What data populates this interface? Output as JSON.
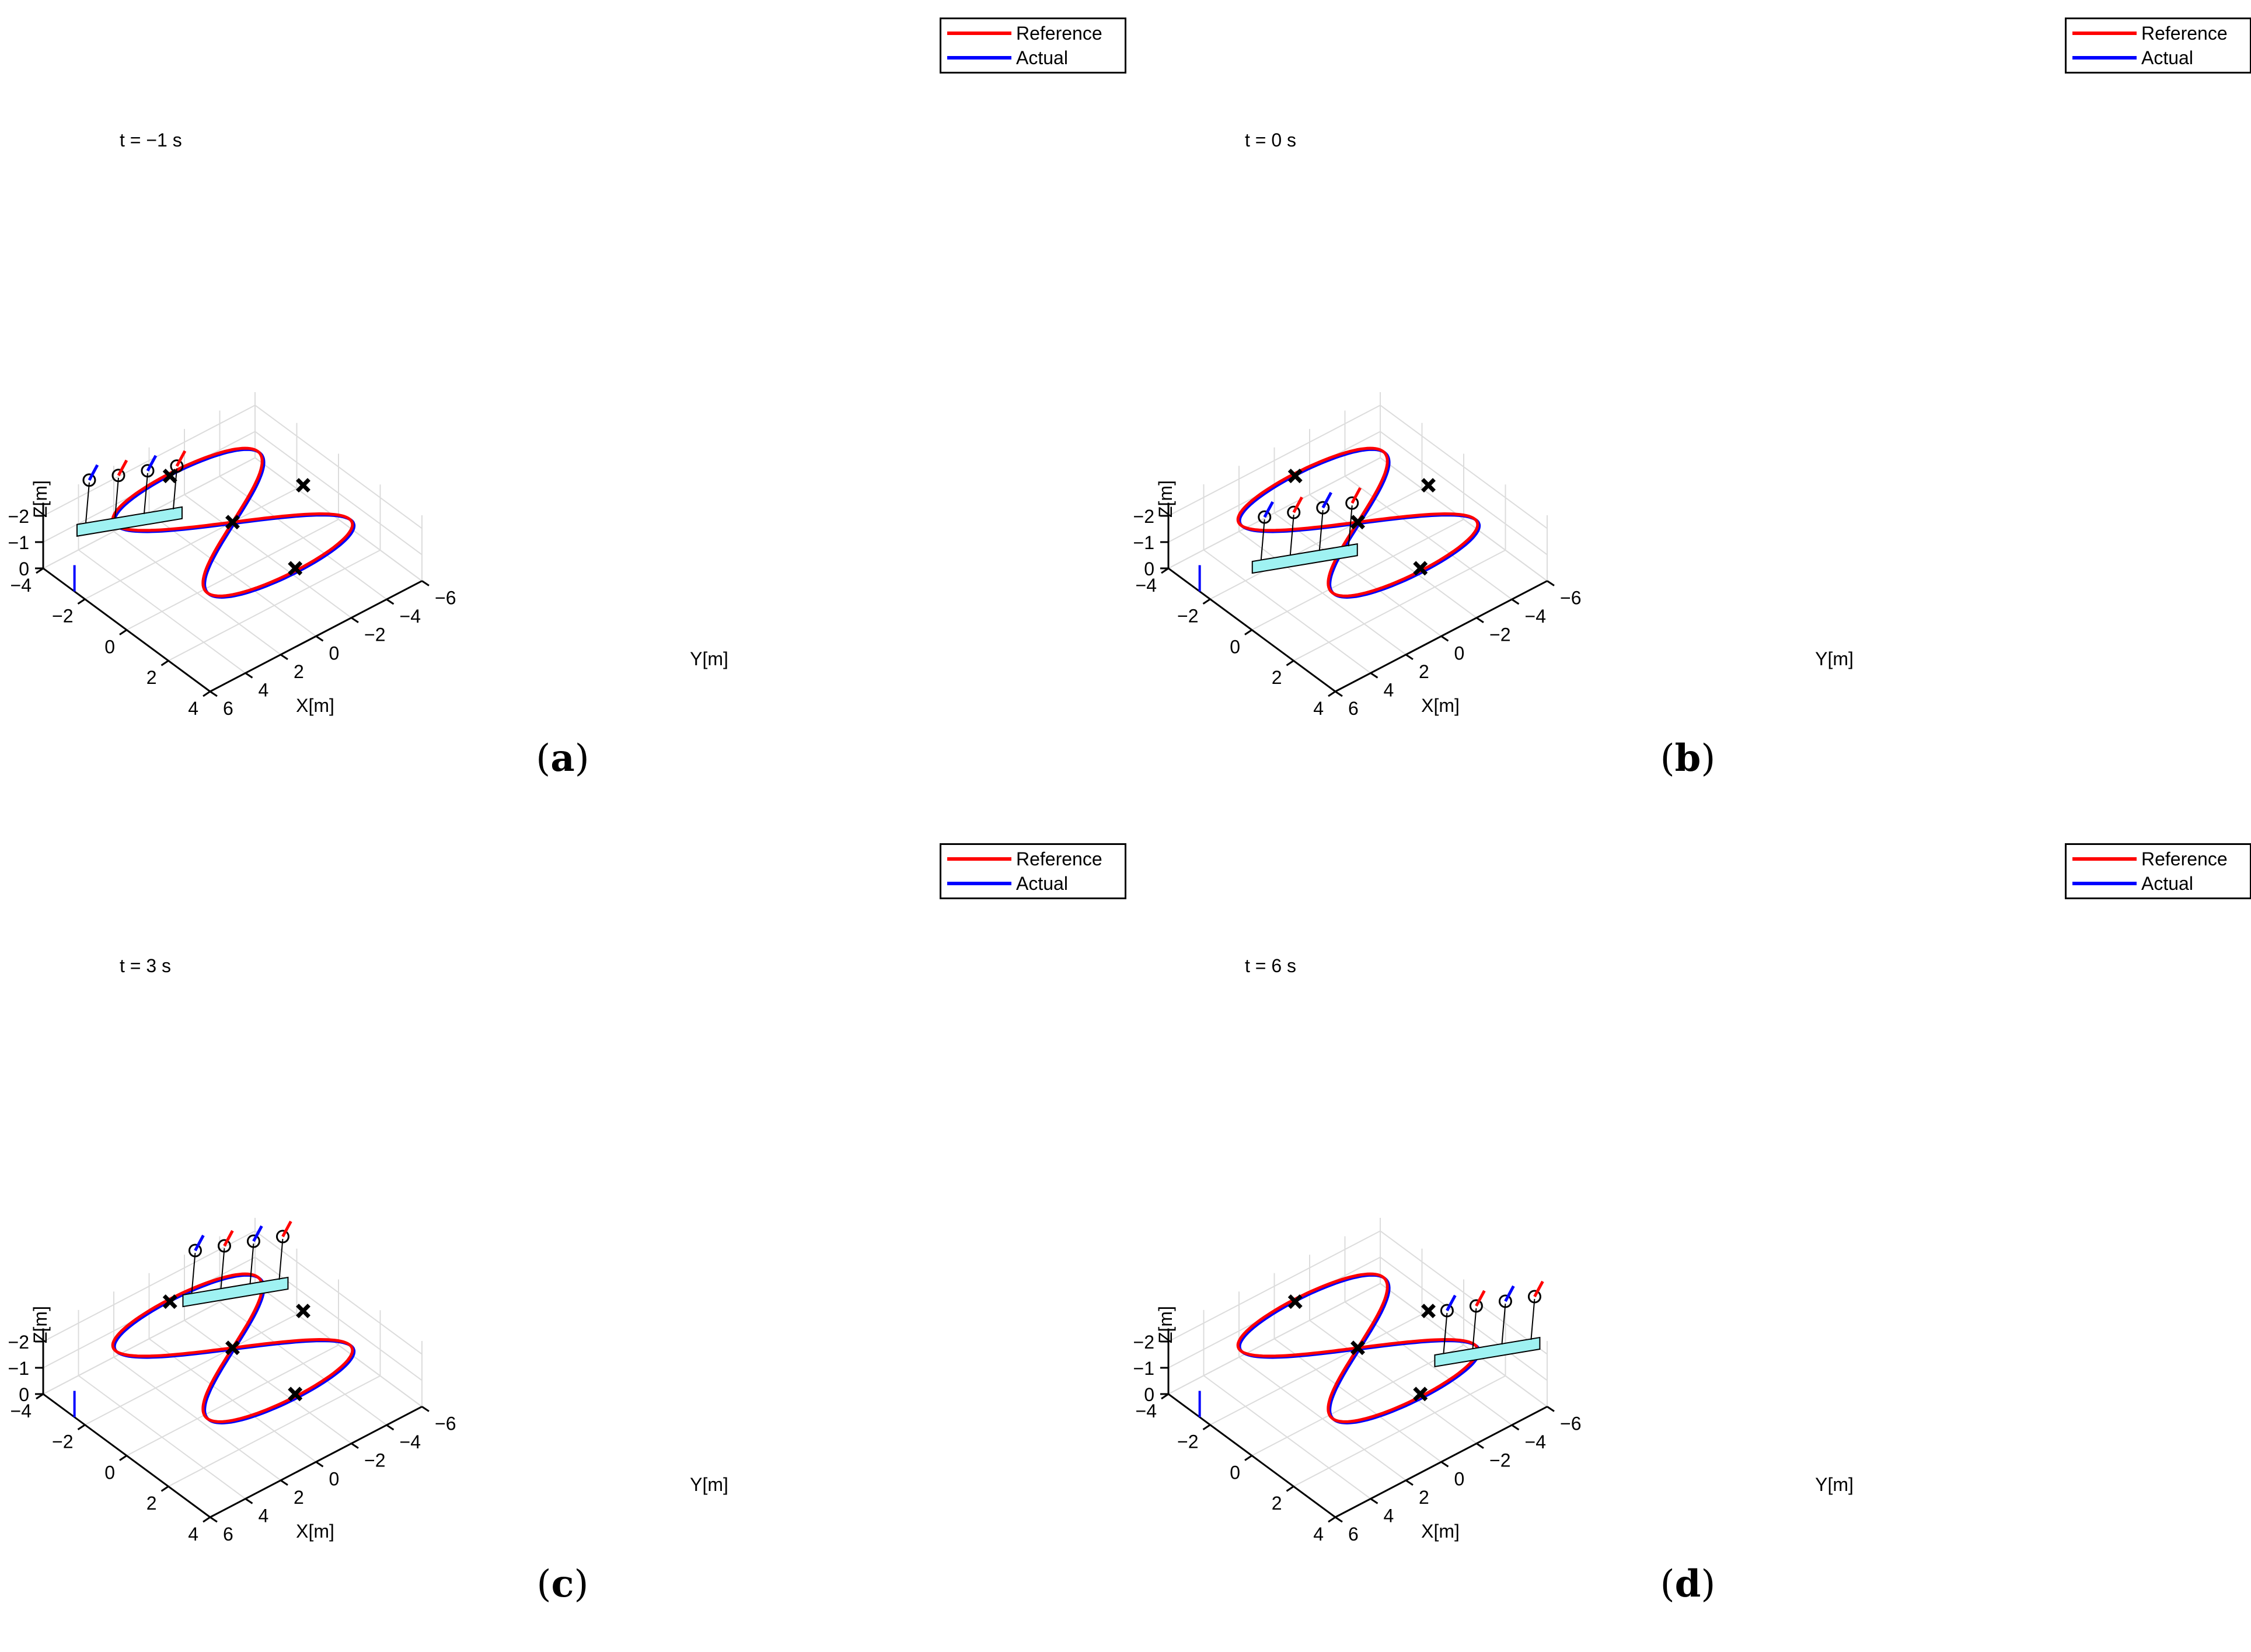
{
  "figure": {
    "panels": [
      {
        "caption_letter": "a",
        "time_label": "t = −1 s"
      },
      {
        "caption_letter": "b",
        "time_label": "t = 0 s"
      },
      {
        "caption_letter": "c",
        "time_label": "t = 3 s"
      },
      {
        "caption_letter": "d",
        "time_label": "t = 6 s"
      }
    ],
    "legend": [
      {
        "name": "Reference",
        "color": "#ff0000"
      },
      {
        "name": "Actual",
        "color": "#0000ff"
      }
    ]
  },
  "chart_data": [
    {
      "type": "line",
      "time_label": "t = −1 s",
      "xlabel": "X[m]",
      "ylabel": "Y[m]",
      "zlabel": "Z[m]",
      "xlim": [
        -4,
        4
      ],
      "ylim": [
        -6,
        6
      ],
      "zlim": [
        -2.5,
        0
      ],
      "x_ticks": [
        "−4",
        "−2",
        "0",
        "2",
        "4"
      ],
      "y_ticks": [
        "−6",
        "−4",
        "−2",
        "0",
        "2",
        "4",
        "6"
      ],
      "z_ticks": [
        "−2",
        "−1",
        "0"
      ],
      "grid": true,
      "legend_position": "top-right",
      "series": [
        {
          "name": "Reference",
          "color": "#ff0000",
          "trajectory": "figure-eight, x = 3 sin(t), y = 4 sin(2t)… (lemniscate, z = −2)"
        },
        {
          "name": "Actual",
          "color": "#0000ff"
        }
      ],
      "waypoints": [
        [
          -3.0,
          0.0,
          -2.0
        ],
        [
          0.0,
          0.0,
          -2.0
        ],
        [
          3.0,
          0.0,
          -2.0
        ],
        [
          0.0,
          -4.0,
          -2.0
        ]
      ],
      "payload_position": [
        -2.4,
        3.0,
        -2.0
      ]
    },
    {
      "type": "line",
      "time_label": "t = 0 s",
      "xlabel": "X[m]",
      "ylabel": "Y[m]",
      "zlabel": "Z[m]",
      "xlim": [
        -4,
        4
      ],
      "ylim": [
        -6,
        6
      ],
      "zlim": [
        -2.5,
        0
      ],
      "x_ticks": [
        "−4",
        "−2",
        "0",
        "2",
        "4"
      ],
      "y_ticks": [
        "−6",
        "−4",
        "−2",
        "0",
        "2",
        "4",
        "6"
      ],
      "z_ticks": [
        "−2",
        "−1",
        "0"
      ],
      "grid": true,
      "legend_position": "top-right",
      "series": [
        {
          "name": "Reference",
          "color": "#ff0000"
        },
        {
          "name": "Actual",
          "color": "#0000ff"
        }
      ],
      "waypoints": [
        [
          -3.0,
          0.0,
          -2.0
        ],
        [
          0.0,
          0.0,
          -2.0
        ],
        [
          3.0,
          0.0,
          -2.0
        ],
        [
          0.0,
          -4.0,
          -2.0
        ]
      ],
      "payload_position": [
        0.0,
        3.0,
        -2.0
      ]
    },
    {
      "type": "line",
      "time_label": "t = 3 s",
      "xlabel": "X[m]",
      "ylabel": "Y[m]",
      "zlabel": "Z[m]",
      "xlim": [
        -4,
        4
      ],
      "ylim": [
        -6,
        6
      ],
      "zlim": [
        -2.5,
        0
      ],
      "x_ticks": [
        "−4",
        "−2",
        "0",
        "2",
        "4"
      ],
      "y_ticks": [
        "−6",
        "−4",
        "−2",
        "0",
        "2",
        "4",
        "6"
      ],
      "z_ticks": [
        "−2",
        "−1",
        "0"
      ],
      "grid": true,
      "legend_position": "top-right",
      "series": [
        {
          "name": "Reference",
          "color": "#ff0000"
        },
        {
          "name": "Actual",
          "color": "#0000ff"
        }
      ],
      "waypoints": [
        [
          -3.0,
          0.0,
          -2.0
        ],
        [
          0.0,
          0.0,
          -2.0
        ],
        [
          3.0,
          0.0,
          -2.0
        ],
        [
          0.0,
          -4.0,
          -2.0
        ]
      ],
      "payload_position": [
        -2.4,
        -3.0,
        -2.0
      ]
    },
    {
      "type": "line",
      "time_label": "t = 6 s",
      "xlabel": "X[m]",
      "ylabel": "Y[m]",
      "zlabel": "Z[m]",
      "xlim": [
        -4,
        4
      ],
      "ylim": [
        -6,
        6
      ],
      "zlim": [
        -2.5,
        0
      ],
      "x_ticks": [
        "−4",
        "−2",
        "0",
        "2",
        "4"
      ],
      "y_ticks": [
        "−6",
        "−4",
        "−2",
        "0",
        "2",
        "4",
        "6"
      ],
      "z_ticks": [
        "−2",
        "−1",
        "0"
      ],
      "grid": true,
      "legend_position": "top-right",
      "series": [
        {
          "name": "Reference",
          "color": "#ff0000"
        },
        {
          "name": "Actual",
          "color": "#0000ff"
        }
      ],
      "waypoints": [
        [
          -3.0,
          0.0,
          -2.0
        ],
        [
          0.0,
          0.0,
          -2.0
        ],
        [
          3.0,
          0.0,
          -2.0
        ],
        [
          0.0,
          -4.0,
          -2.0
        ]
      ],
      "payload_position": [
        2.4,
        -4.5,
        -2.0
      ]
    }
  ]
}
